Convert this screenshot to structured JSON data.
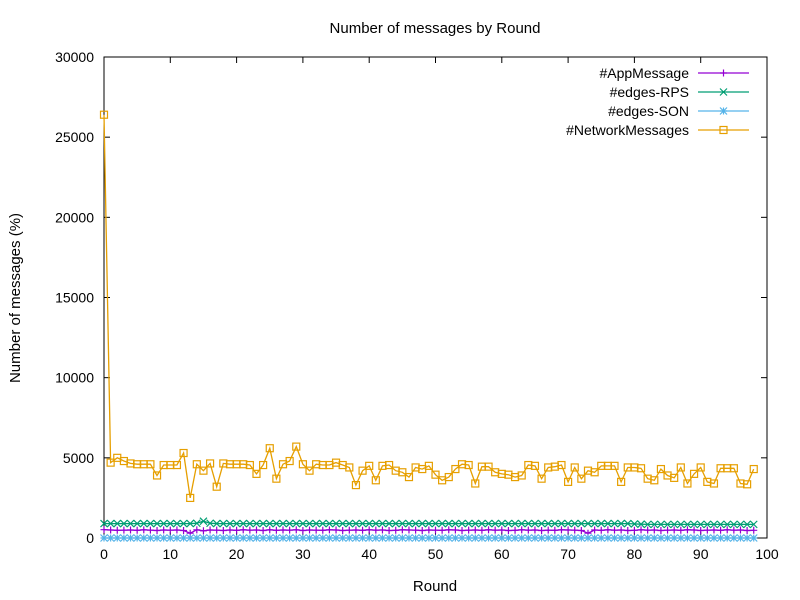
{
  "chart_data": {
    "type": "line",
    "title": "Number of messages by Round",
    "xlabel": "Round",
    "ylabel": "Number of messages (%)",
    "xlim": [
      0,
      100
    ],
    "ylim": [
      0,
      30000
    ],
    "x_ticks": [
      "0",
      "10",
      "20",
      "30",
      "40",
      "50",
      "60",
      "70",
      "80",
      "90",
      "100"
    ],
    "y_ticks": [
      "0",
      "5000",
      "10000",
      "15000",
      "20000",
      "25000",
      "30000"
    ],
    "grid": false,
    "legend_position": "top-right",
    "series": [
      {
        "name": "#AppMessage",
        "color": "#9400d3",
        "marker": "plus",
        "x": [
          0,
          1,
          2,
          3,
          4,
          5,
          6,
          7,
          8,
          9,
          10,
          11,
          12,
          13,
          14,
          15,
          16,
          17,
          18,
          19,
          20,
          21,
          22,
          23,
          24,
          25,
          26,
          27,
          28,
          29,
          30,
          31,
          32,
          33,
          34,
          35,
          36,
          37,
          38,
          39,
          40,
          41,
          42,
          43,
          44,
          45,
          46,
          47,
          48,
          49,
          50,
          51,
          52,
          53,
          54,
          55,
          56,
          57,
          58,
          59,
          60,
          61,
          62,
          63,
          64,
          65,
          66,
          67,
          68,
          69,
          70,
          71,
          72,
          73,
          74,
          75,
          76,
          77,
          78,
          79,
          80,
          81,
          82,
          83,
          84,
          85,
          86,
          87,
          88,
          89,
          90,
          91,
          92,
          93,
          94,
          95,
          96,
          97,
          98
        ],
        "values": [
          520,
          500,
          480,
          490,
          500,
          480,
          510,
          490,
          470,
          500,
          490,
          500,
          470,
          300,
          510,
          450,
          500,
          490,
          470,
          500,
          480,
          510,
          490,
          500,
          470,
          510,
          480,
          500,
          490,
          510,
          470,
          500,
          490,
          480,
          510,
          500,
          470,
          490,
          500,
          480,
          510,
          490,
          500,
          470,
          480,
          510,
          500,
          490,
          470,
          500,
          490,
          480,
          510,
          500,
          470,
          490,
          500,
          480,
          510,
          490,
          500,
          470,
          480,
          510,
          490,
          500,
          470,
          490,
          480,
          510,
          500,
          490,
          470,
          300,
          500,
          480,
          510,
          490,
          500,
          470,
          480,
          510,
          490,
          500,
          470,
          490,
          500,
          480,
          510,
          500,
          470,
          490,
          500,
          480,
          510,
          490,
          500,
          470,
          480
        ]
      },
      {
        "name": "#edges-RPS",
        "color": "#009e73",
        "marker": "x",
        "x": [
          0,
          1,
          2,
          3,
          4,
          5,
          6,
          7,
          8,
          9,
          10,
          11,
          12,
          13,
          14,
          15,
          16,
          17,
          18,
          19,
          20,
          21,
          22,
          23,
          24,
          25,
          26,
          27,
          28,
          29,
          30,
          31,
          32,
          33,
          34,
          35,
          36,
          37,
          38,
          39,
          40,
          41,
          42,
          43,
          44,
          45,
          46,
          47,
          48,
          49,
          50,
          51,
          52,
          53,
          54,
          55,
          56,
          57,
          58,
          59,
          60,
          61,
          62,
          63,
          64,
          65,
          66,
          67,
          68,
          69,
          70,
          71,
          72,
          73,
          74,
          75,
          76,
          77,
          78,
          79,
          80,
          81,
          82,
          83,
          84,
          85,
          86,
          87,
          88,
          89,
          90,
          91,
          92,
          93,
          94,
          95,
          96,
          97,
          98
        ],
        "values": [
          900,
          900,
          900,
          900,
          900,
          900,
          900,
          900,
          900,
          900,
          900,
          900,
          900,
          900,
          920,
          1050,
          920,
          900,
          900,
          900,
          900,
          900,
          900,
          900,
          900,
          900,
          900,
          900,
          900,
          900,
          900,
          900,
          900,
          900,
          900,
          900,
          900,
          900,
          900,
          900,
          900,
          900,
          900,
          900,
          900,
          900,
          900,
          900,
          900,
          900,
          900,
          900,
          900,
          900,
          900,
          900,
          900,
          900,
          900,
          900,
          900,
          900,
          900,
          900,
          900,
          900,
          900,
          900,
          900,
          900,
          900,
          900,
          900,
          900,
          900,
          900,
          900,
          900,
          900,
          900,
          880,
          860,
          850,
          850,
          850,
          850,
          850,
          850,
          850,
          850,
          850,
          850,
          850,
          850,
          850,
          850,
          850,
          850,
          850
        ]
      },
      {
        "name": "#edges-SON",
        "color": "#56b4e9",
        "marker": "star",
        "x": [
          0,
          1,
          2,
          3,
          4,
          5,
          6,
          7,
          8,
          9,
          10,
          11,
          12,
          13,
          14,
          15,
          16,
          17,
          18,
          19,
          20,
          21,
          22,
          23,
          24,
          25,
          26,
          27,
          28,
          29,
          30,
          31,
          32,
          33,
          34,
          35,
          36,
          37,
          38,
          39,
          40,
          41,
          42,
          43,
          44,
          45,
          46,
          47,
          48,
          49,
          50,
          51,
          52,
          53,
          54,
          55,
          56,
          57,
          58,
          59,
          60,
          61,
          62,
          63,
          64,
          65,
          66,
          67,
          68,
          69,
          70,
          71,
          72,
          73,
          74,
          75,
          76,
          77,
          78,
          79,
          80,
          81,
          82,
          83,
          84,
          85,
          86,
          87,
          88,
          89,
          90,
          91,
          92,
          93,
          94,
          95,
          96,
          97,
          98
        ],
        "values": [
          0,
          0,
          0,
          0,
          0,
          0,
          0,
          0,
          0,
          0,
          0,
          0,
          0,
          0,
          0,
          0,
          0,
          0,
          0,
          0,
          0,
          0,
          0,
          0,
          0,
          0,
          0,
          0,
          0,
          0,
          0,
          0,
          0,
          0,
          0,
          0,
          0,
          0,
          0,
          0,
          0,
          0,
          0,
          0,
          0,
          0,
          0,
          0,
          0,
          0,
          0,
          0,
          0,
          0,
          0,
          0,
          0,
          0,
          0,
          0,
          0,
          0,
          0,
          0,
          0,
          0,
          0,
          0,
          0,
          0,
          0,
          0,
          0,
          0,
          0,
          0,
          0,
          0,
          0,
          0,
          0,
          0,
          0,
          0,
          0,
          0,
          0,
          0,
          0,
          0,
          0,
          0,
          0,
          0,
          0,
          0,
          0,
          0,
          0
        ]
      },
      {
        "name": "#NetworkMessages",
        "color": "#e69f00",
        "marker": "square",
        "x": [
          0,
          1,
          2,
          3,
          4,
          5,
          6,
          7,
          8,
          9,
          10,
          11,
          12,
          13,
          14,
          15,
          16,
          17,
          18,
          19,
          20,
          21,
          22,
          23,
          24,
          25,
          26,
          27,
          28,
          29,
          30,
          31,
          32,
          33,
          34,
          35,
          36,
          37,
          38,
          39,
          40,
          41,
          42,
          43,
          44,
          45,
          46,
          47,
          48,
          49,
          50,
          51,
          52,
          53,
          54,
          55,
          56,
          57,
          58,
          59,
          60,
          61,
          62,
          63,
          64,
          65,
          66,
          67,
          68,
          69,
          70,
          71,
          72,
          73,
          74,
          75,
          76,
          77,
          78,
          79,
          80,
          81,
          82,
          83,
          84,
          85,
          86,
          87,
          88,
          89,
          90,
          91,
          92,
          93,
          94,
          95,
          96,
          97,
          98
        ],
        "values": [
          26400,
          4700,
          5000,
          4800,
          4650,
          4600,
          4600,
          4600,
          3900,
          4550,
          4550,
          4550,
          5300,
          2500,
          4600,
          4200,
          4650,
          3200,
          4650,
          4600,
          4600,
          4600,
          4550,
          4000,
          4550,
          5600,
          3700,
          4600,
          4800,
          5700,
          4600,
          4200,
          4600,
          4550,
          4550,
          4700,
          4550,
          4400,
          3300,
          4200,
          4500,
          3600,
          4500,
          4550,
          4200,
          4100,
          3800,
          4400,
          4300,
          4500,
          3950,
          3600,
          3800,
          4300,
          4600,
          4550,
          3400,
          4450,
          4450,
          4100,
          4000,
          3950,
          3800,
          3900,
          4550,
          4500,
          3700,
          4400,
          4450,
          4550,
          3500,
          4400,
          3700,
          4200,
          4100,
          4500,
          4500,
          4500,
          3500,
          4400,
          4400,
          4350,
          3700,
          3600,
          4300,
          3900,
          3750,
          4400,
          3400,
          4000,
          4400,
          3500,
          3400,
          4350,
          4350,
          4350,
          3400,
          3350,
          4300
        ]
      }
    ]
  }
}
